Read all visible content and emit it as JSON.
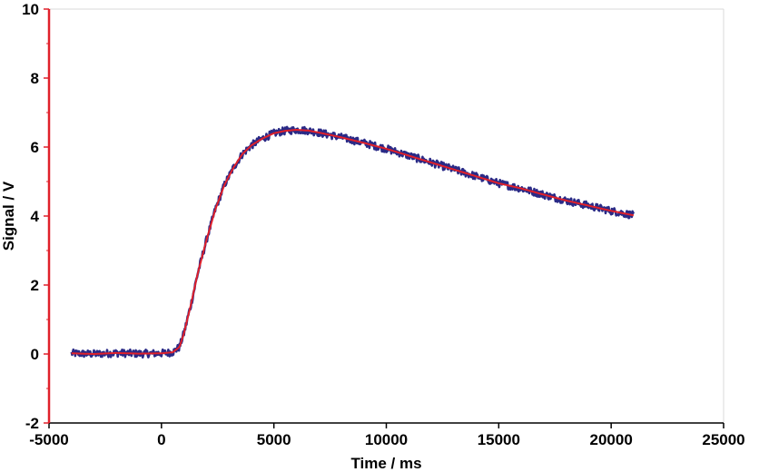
{
  "chart_data": {
    "type": "line",
    "title": "",
    "xlabel": "Time / ms",
    "ylabel": "Signal / V",
    "xlim": [
      -5000,
      25000
    ],
    "ylim": [
      -2,
      10
    ],
    "x_ticks": [
      -5000,
      0,
      5000,
      10000,
      15000,
      20000,
      25000
    ],
    "y_ticks": [
      -2,
      0,
      2,
      4,
      6,
      8,
      10
    ],
    "x_tick_labels": [
      "-5000",
      "0",
      "5000",
      "10000",
      "15000",
      "20000",
      "25000"
    ],
    "y_tick_labels": [
      "-2",
      "0",
      "2",
      "4",
      "6",
      "8",
      "10"
    ],
    "grid": false,
    "legend": "none",
    "series": [
      {
        "style": "noisy-measured",
        "color": "#2a2a86",
        "x": [
          -4000,
          -3000,
          -2000,
          -1000,
          0,
          500,
          800,
          1000,
          1300,
          1600,
          2000,
          2400,
          2800,
          3200,
          3600,
          4000,
          4500,
          5000,
          5500,
          6000,
          6500,
          7000,
          7500,
          8000,
          8500,
          9000,
          10000,
          11000,
          12000,
          13000,
          14000,
          15000,
          16000,
          17000,
          18000,
          19000,
          20000,
          21000
        ],
        "y": [
          0.02,
          0.0,
          0.03,
          0.01,
          0.02,
          0.05,
          0.2,
          0.6,
          1.4,
          2.3,
          3.3,
          4.2,
          4.9,
          5.4,
          5.8,
          6.05,
          6.25,
          6.4,
          6.47,
          6.5,
          6.48,
          6.42,
          6.35,
          6.28,
          6.2,
          6.12,
          5.95,
          5.75,
          5.55,
          5.35,
          5.15,
          4.95,
          4.8,
          4.62,
          4.45,
          4.3,
          4.15,
          4.02
        ]
      },
      {
        "style": "fit",
        "color": "#e0202a",
        "x": [
          -4000,
          -3000,
          -2000,
          -1000,
          0,
          500,
          800,
          1000,
          1300,
          1600,
          2000,
          2400,
          2800,
          3200,
          3600,
          4000,
          4500,
          5000,
          5500,
          6000,
          6500,
          7000,
          7500,
          8000,
          8500,
          9000,
          10000,
          11000,
          12000,
          13000,
          14000,
          15000,
          16000,
          17000,
          18000,
          19000,
          20000,
          21000
        ],
        "y": [
          0.02,
          0.0,
          0.03,
          0.01,
          0.02,
          0.05,
          0.2,
          0.6,
          1.4,
          2.3,
          3.3,
          4.2,
          4.9,
          5.4,
          5.8,
          6.05,
          6.25,
          6.4,
          6.47,
          6.5,
          6.48,
          6.42,
          6.35,
          6.28,
          6.2,
          6.12,
          5.95,
          5.75,
          5.55,
          5.35,
          5.15,
          4.95,
          4.8,
          4.62,
          4.45,
          4.3,
          4.15,
          4.02
        ]
      }
    ],
    "axis_color": "#e0202a"
  }
}
